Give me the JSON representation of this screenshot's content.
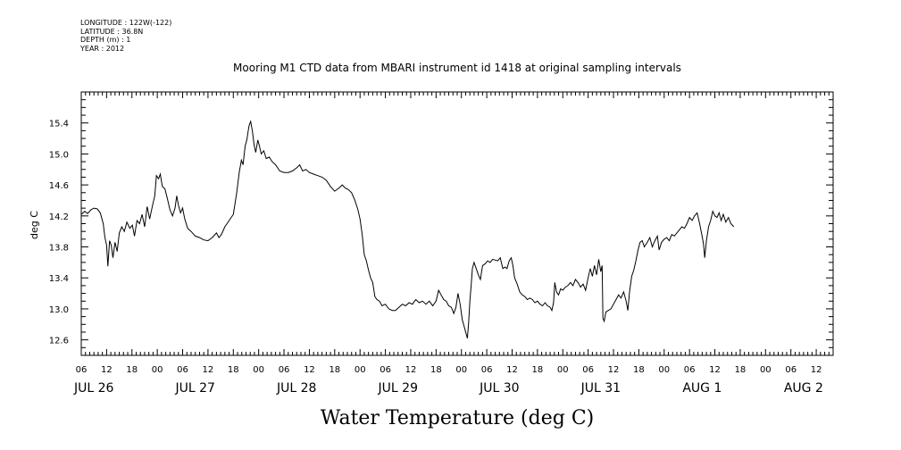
{
  "header": {
    "longitude": "LONGITUDE : 122W(-122)",
    "latitude": "LATITUDE : 36.8N",
    "depth": "DEPTH (m) : 1",
    "year": "YEAR : 2012"
  },
  "chart_data": {
    "type": "line",
    "title": "Mooring M1 CTD data from MBARI instrument id 1418 at original sampling intervals",
    "xlabel": "Water Temperature (deg C)",
    "ylabel": "deg C",
    "grid": false,
    "legend": "none",
    "line_color": "#000000",
    "xlim": [
      0,
      167
    ],
    "ylim": [
      12.4,
      15.8
    ],
    "x_unit": "hours since JUL 26 00:00 (2012)",
    "y_ticks": [
      12.6,
      13.0,
      13.4,
      13.8,
      14.2,
      14.6,
      15.0,
      15.4
    ],
    "y_tick_labels": [
      "12.6",
      "13.0",
      "13.4",
      "13.8",
      "14.2",
      "14.6",
      "15.0",
      "15.4"
    ],
    "x_hour_ticks": [
      6,
      12,
      18,
      24,
      30,
      36,
      42,
      48,
      54,
      60,
      66,
      72,
      78,
      84,
      90,
      96,
      102,
      108,
      114,
      120,
      126,
      132,
      138,
      144,
      150,
      156,
      162,
      168,
      174,
      180
    ],
    "x_hour_labels": [
      "06",
      "12",
      "18",
      "00",
      "06",
      "12",
      "18",
      "00",
      "06",
      "12",
      "18",
      "00",
      "06",
      "12",
      "18",
      "00",
      "06",
      "12",
      "18",
      "00",
      "06",
      "12",
      "18",
      "00",
      "06",
      "12",
      "18",
      "00",
      "06",
      "12"
    ],
    "x_day_labels": [
      {
        "x": 9,
        "label": "JUL 26"
      },
      {
        "x": 33,
        "label": "JUL 27"
      },
      {
        "x": 57,
        "label": "JUL 28"
      },
      {
        "x": 81,
        "label": "JUL 29"
      },
      {
        "x": 105,
        "label": "JUL 30"
      },
      {
        "x": 129,
        "label": "JUL 31"
      },
      {
        "x": 153,
        "label": "AUG 1"
      },
      {
        "x": 177,
        "label": "AUG 2"
      }
    ],
    "series": [
      {
        "points": [
          [
            6.0,
            14.22
          ],
          [
            6.8,
            14.26
          ],
          [
            7.5,
            14.23
          ],
          [
            8.3,
            14.28
          ],
          [
            9.0,
            14.3
          ],
          [
            9.8,
            14.29
          ],
          [
            10.5,
            14.24
          ],
          [
            11.2,
            14.1
          ],
          [
            11.6,
            13.92
          ],
          [
            12.0,
            13.82
          ],
          [
            12.3,
            13.55
          ],
          [
            12.7,
            13.88
          ],
          [
            13.1,
            13.82
          ],
          [
            13.5,
            13.66
          ],
          [
            14.0,
            13.86
          ],
          [
            14.5,
            13.74
          ],
          [
            15.0,
            13.98
          ],
          [
            15.6,
            14.06
          ],
          [
            16.2,
            14.0
          ],
          [
            16.8,
            14.12
          ],
          [
            17.5,
            14.04
          ],
          [
            18.1,
            14.08
          ],
          [
            18.6,
            13.94
          ],
          [
            19.2,
            14.14
          ],
          [
            19.8,
            14.1
          ],
          [
            20.4,
            14.22
          ],
          [
            21.0,
            14.06
          ],
          [
            21.6,
            14.32
          ],
          [
            22.2,
            14.16
          ],
          [
            22.9,
            14.34
          ],
          [
            23.4,
            14.46
          ],
          [
            23.8,
            14.72
          ],
          [
            24.3,
            14.68
          ],
          [
            24.7,
            14.74
          ],
          [
            25.2,
            14.58
          ],
          [
            25.8,
            14.55
          ],
          [
            26.4,
            14.42
          ],
          [
            27.0,
            14.28
          ],
          [
            27.6,
            14.2
          ],
          [
            28.2,
            14.3
          ],
          [
            28.6,
            14.46
          ],
          [
            29.0,
            14.34
          ],
          [
            29.5,
            14.24
          ],
          [
            30.0,
            14.3
          ],
          [
            30.5,
            14.16
          ],
          [
            31.2,
            14.04
          ],
          [
            32.0,
            14.0
          ],
          [
            33.0,
            13.94
          ],
          [
            34.0,
            13.92
          ],
          [
            35.0,
            13.89
          ],
          [
            36.0,
            13.88
          ],
          [
            37.0,
            13.92
          ],
          [
            38.0,
            13.98
          ],
          [
            38.6,
            13.92
          ],
          [
            39.2,
            13.96
          ],
          [
            40.0,
            14.06
          ],
          [
            41.0,
            14.14
          ],
          [
            42.0,
            14.22
          ],
          [
            42.8,
            14.5
          ],
          [
            43.4,
            14.76
          ],
          [
            43.9,
            14.92
          ],
          [
            44.3,
            14.86
          ],
          [
            44.8,
            15.1
          ],
          [
            45.2,
            15.18
          ],
          [
            45.7,
            15.36
          ],
          [
            46.1,
            15.42
          ],
          [
            46.5,
            15.3
          ],
          [
            46.9,
            15.12
          ],
          [
            47.3,
            15.02
          ],
          [
            47.8,
            15.18
          ],
          [
            48.2,
            15.1
          ],
          [
            48.6,
            15.0
          ],
          [
            49.2,
            15.04
          ],
          [
            49.8,
            14.94
          ],
          [
            50.5,
            14.96
          ],
          [
            51.2,
            14.9
          ],
          [
            52.0,
            14.86
          ],
          [
            53.0,
            14.78
          ],
          [
            54.0,
            14.76
          ],
          [
            55.0,
            14.76
          ],
          [
            56.0,
            14.78
          ],
          [
            57.0,
            14.82
          ],
          [
            57.7,
            14.86
          ],
          [
            58.4,
            14.78
          ],
          [
            59.2,
            14.8
          ],
          [
            60.0,
            14.76
          ],
          [
            61.0,
            14.74
          ],
          [
            62.0,
            14.72
          ],
          [
            63.0,
            14.7
          ],
          [
            64.0,
            14.66
          ],
          [
            65.0,
            14.58
          ],
          [
            66.0,
            14.52
          ],
          [
            67.0,
            14.56
          ],
          [
            67.8,
            14.6
          ],
          [
            68.5,
            14.56
          ],
          [
            69.2,
            14.54
          ],
          [
            70.0,
            14.5
          ],
          [
            70.8,
            14.4
          ],
          [
            71.5,
            14.28
          ],
          [
            72.0,
            14.16
          ],
          [
            72.5,
            13.96
          ],
          [
            73.0,
            13.7
          ],
          [
            73.5,
            13.62
          ],
          [
            74.0,
            13.5
          ],
          [
            74.5,
            13.4
          ],
          [
            75.0,
            13.34
          ],
          [
            75.5,
            13.16
          ],
          [
            76.0,
            13.12
          ],
          [
            76.6,
            13.1
          ],
          [
            77.2,
            13.04
          ],
          [
            78.0,
            13.06
          ],
          [
            78.8,
            13.0
          ],
          [
            79.6,
            12.98
          ],
          [
            80.4,
            12.98
          ],
          [
            81.2,
            13.02
          ],
          [
            82.0,
            13.06
          ],
          [
            82.8,
            13.04
          ],
          [
            83.6,
            13.08
          ],
          [
            84.4,
            13.06
          ],
          [
            85.2,
            13.12
          ],
          [
            86.0,
            13.08
          ],
          [
            86.8,
            13.1
          ],
          [
            87.6,
            13.06
          ],
          [
            88.4,
            13.1
          ],
          [
            89.2,
            13.04
          ],
          [
            90.0,
            13.1
          ],
          [
            90.6,
            13.24
          ],
          [
            91.2,
            13.18
          ],
          [
            91.8,
            13.12
          ],
          [
            92.4,
            13.1
          ],
          [
            93.0,
            13.04
          ],
          [
            93.6,
            13.02
          ],
          [
            94.2,
            12.94
          ],
          [
            94.7,
            13.02
          ],
          [
            95.2,
            13.2
          ],
          [
            95.7,
            13.06
          ],
          [
            96.2,
            12.86
          ],
          [
            96.6,
            12.78
          ],
          [
            97.0,
            12.7
          ],
          [
            97.4,
            12.62
          ],
          [
            97.7,
            12.82
          ],
          [
            98.0,
            13.1
          ],
          [
            98.3,
            13.3
          ],
          [
            98.6,
            13.52
          ],
          [
            99.0,
            13.6
          ],
          [
            99.5,
            13.52
          ],
          [
            100.0,
            13.44
          ],
          [
            100.5,
            13.38
          ],
          [
            101.0,
            13.56
          ],
          [
            101.6,
            13.58
          ],
          [
            102.2,
            13.62
          ],
          [
            102.8,
            13.6
          ],
          [
            103.4,
            13.64
          ],
          [
            104.0,
            13.63
          ],
          [
            104.6,
            13.62
          ],
          [
            105.2,
            13.66
          ],
          [
            105.8,
            13.52
          ],
          [
            106.3,
            13.54
          ],
          [
            106.8,
            13.52
          ],
          [
            107.3,
            13.62
          ],
          [
            107.8,
            13.66
          ],
          [
            108.2,
            13.56
          ],
          [
            108.6,
            13.4
          ],
          [
            109.2,
            13.32
          ],
          [
            109.8,
            13.22
          ],
          [
            110.4,
            13.18
          ],
          [
            111.0,
            13.16
          ],
          [
            111.6,
            13.12
          ],
          [
            112.2,
            13.14
          ],
          [
            112.8,
            13.12
          ],
          [
            113.4,
            13.08
          ],
          [
            114.0,
            13.1
          ],
          [
            114.6,
            13.06
          ],
          [
            115.2,
            13.04
          ],
          [
            115.8,
            13.08
          ],
          [
            116.4,
            13.04
          ],
          [
            117.0,
            13.02
          ],
          [
            117.4,
            12.98
          ],
          [
            117.8,
            13.08
          ],
          [
            118.1,
            13.34
          ],
          [
            118.5,
            13.22
          ],
          [
            119.0,
            13.18
          ],
          [
            119.5,
            13.26
          ],
          [
            120.0,
            13.24
          ],
          [
            120.6,
            13.28
          ],
          [
            121.2,
            13.3
          ],
          [
            121.8,
            13.34
          ],
          [
            122.4,
            13.3
          ],
          [
            123.0,
            13.38
          ],
          [
            123.6,
            13.34
          ],
          [
            124.2,
            13.28
          ],
          [
            124.8,
            13.32
          ],
          [
            125.4,
            13.24
          ],
          [
            126.0,
            13.4
          ],
          [
            126.5,
            13.52
          ],
          [
            127.0,
            13.42
          ],
          [
            127.5,
            13.56
          ],
          [
            128.0,
            13.44
          ],
          [
            128.5,
            13.64
          ],
          [
            129.0,
            13.48
          ],
          [
            129.3,
            13.56
          ],
          [
            129.5,
            12.88
          ],
          [
            129.8,
            12.84
          ],
          [
            130.2,
            12.96
          ],
          [
            130.8,
            12.98
          ],
          [
            131.4,
            13.0
          ],
          [
            132.0,
            13.06
          ],
          [
            132.6,
            13.12
          ],
          [
            133.2,
            13.18
          ],
          [
            133.8,
            13.14
          ],
          [
            134.4,
            13.22
          ],
          [
            135.0,
            13.1
          ],
          [
            135.4,
            12.98
          ],
          [
            135.8,
            13.22
          ],
          [
            136.3,
            13.42
          ],
          [
            136.8,
            13.5
          ],
          [
            137.3,
            13.62
          ],
          [
            137.8,
            13.76
          ],
          [
            138.3,
            13.86
          ],
          [
            138.8,
            13.88
          ],
          [
            139.3,
            13.8
          ],
          [
            140.0,
            13.86
          ],
          [
            140.6,
            13.92
          ],
          [
            141.2,
            13.8
          ],
          [
            141.8,
            13.88
          ],
          [
            142.4,
            13.94
          ],
          [
            142.8,
            13.76
          ],
          [
            143.4,
            13.86
          ],
          [
            144.0,
            13.9
          ],
          [
            144.6,
            13.92
          ],
          [
            145.2,
            13.88
          ],
          [
            145.8,
            13.96
          ],
          [
            146.4,
            13.94
          ],
          [
            147.0,
            13.98
          ],
          [
            147.6,
            14.02
          ],
          [
            148.2,
            14.06
          ],
          [
            148.8,
            14.04
          ],
          [
            149.4,
            14.1
          ],
          [
            150.0,
            14.18
          ],
          [
            150.6,
            14.14
          ],
          [
            151.2,
            14.2
          ],
          [
            151.8,
            14.24
          ],
          [
            152.4,
            14.1
          ],
          [
            152.9,
            13.96
          ],
          [
            153.3,
            13.84
          ],
          [
            153.6,
            13.66
          ],
          [
            154.0,
            13.88
          ],
          [
            154.5,
            14.06
          ],
          [
            155.0,
            14.14
          ],
          [
            155.5,
            14.26
          ],
          [
            156.0,
            14.2
          ],
          [
            156.5,
            14.18
          ],
          [
            157.0,
            14.24
          ],
          [
            157.5,
            14.14
          ],
          [
            158.0,
            14.22
          ],
          [
            158.6,
            14.12
          ],
          [
            159.2,
            14.18
          ],
          [
            159.8,
            14.1
          ],
          [
            160.5,
            14.06
          ]
        ]
      }
    ]
  }
}
